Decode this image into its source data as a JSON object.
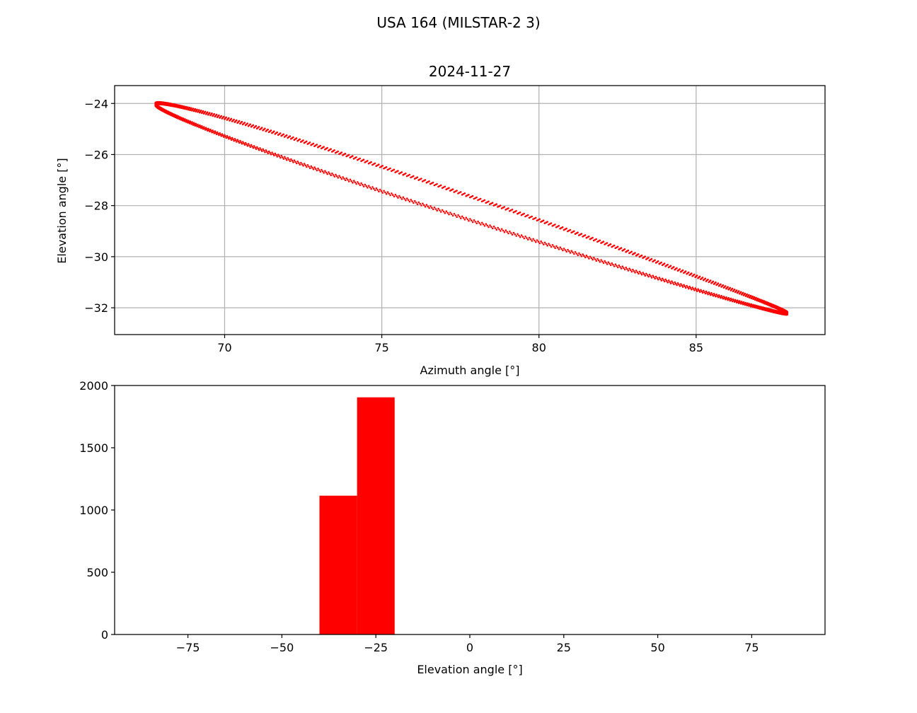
{
  "figure": {
    "suptitle": "USA 164 (MILSTAR-2 3)"
  },
  "colors": {
    "marker": "#ff0000",
    "bar": "#ff0000",
    "grid": "#b0b0b0"
  },
  "chart_data": [
    {
      "type": "scatter",
      "title": "2024-11-27",
      "xlabel": "Azimuth angle [°]",
      "ylabel": "Elevation angle [°]",
      "xlim": [
        66.5,
        89.1
      ],
      "ylim": [
        -33.05,
        -23.3
      ],
      "xticks": [
        70,
        75,
        80,
        85
      ],
      "xtick_labels": [
        "70",
        "75",
        "80",
        "85"
      ],
      "yticks": [
        -24,
        -26,
        -28,
        -30,
        -32
      ],
      "ytick_labels": [
        "−24",
        "−26",
        "−28",
        "−30",
        "−32"
      ],
      "grid": true,
      "series": [
        {
          "marker": "dot",
          "loop_ends": [
            [
              67.8,
              -24.02
            ],
            [
              87.9,
              -32.22
            ]
          ],
          "ellipse_minor_half_width_deg": 0.38,
          "band_thickness_deg": 0.09,
          "tilt_deg": 0.13,
          "x": [
            67.8,
            68.6,
            69.6,
            70.6,
            71.6,
            72.6,
            73.6,
            74.6,
            75.6,
            76.6,
            77.6,
            78.6,
            79.6,
            80.6,
            81.6,
            82.6,
            83.6,
            84.6,
            85.6,
            86.6,
            87.9
          ],
          "upper_y": [
            -24.0,
            -24.1,
            -24.35,
            -24.7,
            -25.1,
            -25.5,
            -25.95,
            -26.5,
            -27.1,
            -27.75,
            -28.4,
            -28.9,
            -29.3,
            -29.65,
            -30.0,
            -30.35,
            -30.7,
            -31.05,
            -31.4,
            -31.75,
            -32.2
          ],
          "lower_y": [
            -24.0,
            -24.6,
            -25.15,
            -25.6,
            -26.0,
            -26.35,
            -26.7,
            -27.05,
            -27.4,
            -27.75,
            -28.2,
            -28.7,
            -29.25,
            -29.8,
            -30.35,
            -30.8,
            -31.2,
            -31.6,
            -31.95,
            -32.3,
            -32.2
          ]
        }
      ]
    },
    {
      "type": "bar",
      "subtype": "histogram",
      "xlabel": "Elevation angle [°]",
      "xlim": [
        -94.5,
        94.5
      ],
      "ylim": [
        0,
        2000
      ],
      "xticks": [
        -75,
        -50,
        -25,
        0,
        25,
        50,
        75
      ],
      "xtick_labels": [
        "−75",
        "−50",
        "−25",
        "0",
        "25",
        "50",
        "75"
      ],
      "yticks": [
        0,
        500,
        1000,
        1500,
        2000
      ],
      "ytick_labels": [
        "0",
        "500",
        "1000",
        "1500",
        "2000"
      ],
      "grid": false,
      "bins": [
        {
          "x0": -40,
          "x1": -30,
          "count": 1115
        },
        {
          "x0": -30,
          "x1": -20,
          "count": 1905
        }
      ]
    }
  ]
}
